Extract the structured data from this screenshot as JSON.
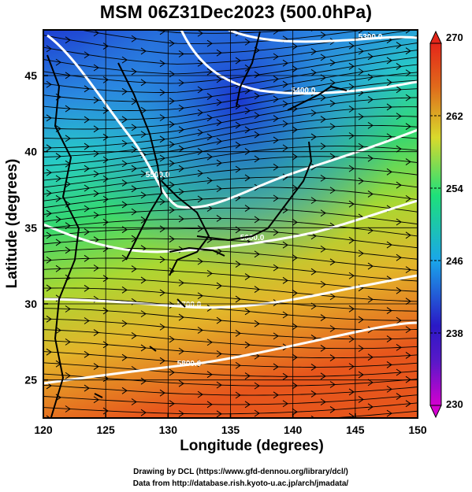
{
  "title": "MSM 06Z31Dec2023 (500.0hPa)",
  "axes": {
    "xlabel": "Longitude (degrees)",
    "ylabel": "Latitude  (degrees)",
    "xlim": [
      120,
      150
    ],
    "ylim": [
      22.5,
      48
    ],
    "xticks": [
      120,
      125,
      130,
      135,
      140,
      145,
      150
    ],
    "yticks": [
      25,
      30,
      35,
      40,
      45
    ],
    "grid": true
  },
  "colorbar": {
    "ticks": [
      230,
      238,
      246,
      254,
      262,
      270
    ],
    "range": [
      230,
      270
    ],
    "colors": [
      "#d400d0",
      "#2a19c6",
      "#1aa6ea",
      "#1ee07a",
      "#d9d92c",
      "#e06a1b",
      "#e4261a"
    ]
  },
  "contours": [
    {
      "label": "5300.0"
    },
    {
      "label": "5400.0"
    },
    {
      "label": "5500.0"
    },
    {
      "label": "5600.0"
    },
    {
      "label": "5700.0"
    },
    {
      "label": "5800.0"
    }
  ],
  "credits": {
    "line1": "Drawing by DCL (https://www.gfd-dennou.org/library/dcl/)",
    "line2": "Data from http://database.rish.kyoto-u.ac.jp/arch/jmadata/"
  }
}
